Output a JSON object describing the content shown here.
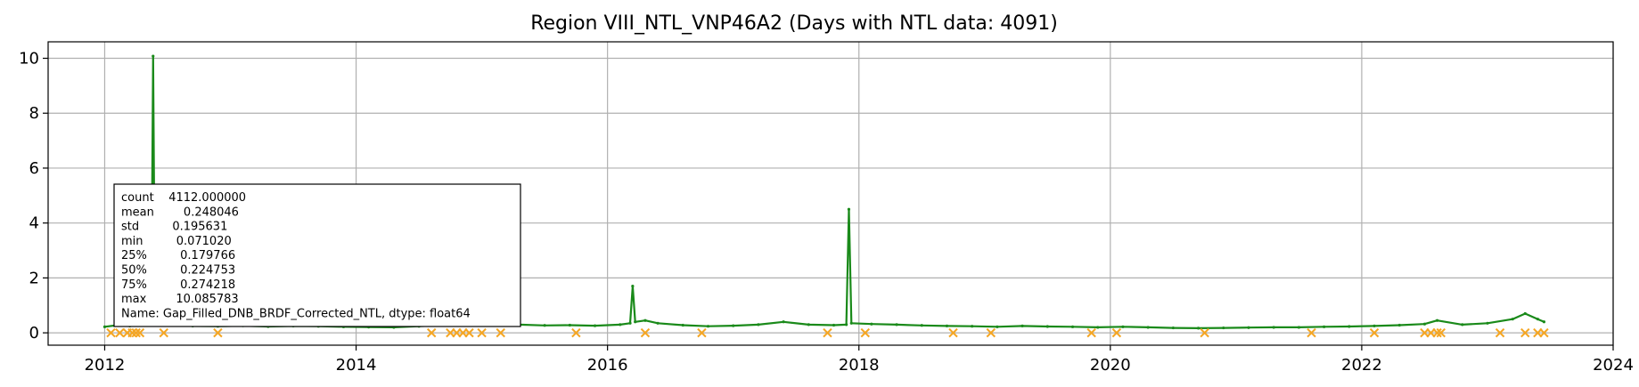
{
  "chart_data": {
    "type": "line",
    "title": "Region VIII_NTL_VNP46A2 (Days with NTL data: 4091)",
    "xlabel": "",
    "ylabel": "",
    "xlim": [
      2011.55,
      2024.0
    ],
    "ylim": [
      -0.45,
      10.6
    ],
    "x_ticks": [
      2012,
      2014,
      2016,
      2018,
      2020,
      2022,
      2024
    ],
    "x_tick_labels": [
      "2012",
      "2014",
      "2016",
      "2018",
      "2020",
      "2022",
      "2024"
    ],
    "y_ticks": [
      0,
      2,
      4,
      6,
      8,
      10
    ],
    "y_tick_labels": [
      "0",
      "2",
      "4",
      "6",
      "8",
      "10"
    ],
    "grid": true,
    "colors": {
      "line": "#1a8a1a",
      "spike": "#55bb55",
      "marker": "#f5a623",
      "grid": "#b0b0b0"
    },
    "series": [
      {
        "style": "line",
        "x": [
          2012.0,
          2012.1,
          2012.2,
          2012.3,
          2012.37,
          2012.385,
          2012.4,
          2012.5,
          2012.7,
          2012.9,
          2013.1,
          2013.3,
          2013.5,
          2013.7,
          2013.9,
          2014.1,
          2014.3,
          2014.5,
          2014.7,
          2014.9,
          2015.1,
          2015.3,
          2015.5,
          2015.7,
          2015.9,
          2016.1,
          2016.18,
          2016.2,
          2016.22,
          2016.3,
          2016.4,
          2016.6,
          2016.8,
          2017.0,
          2017.2,
          2017.4,
          2017.6,
          2017.8,
          2017.9,
          2017.92,
          2017.94,
          2018.1,
          2018.3,
          2018.5,
          2018.7,
          2018.9,
          2019.1,
          2019.3,
          2019.5,
          2019.7,
          2019.9,
          2020.1,
          2020.3,
          2020.5,
          2020.7,
          2020.9,
          2021.1,
          2021.3,
          2021.5,
          2021.7,
          2021.9,
          2022.1,
          2022.3,
          2022.5,
          2022.6,
          2022.8,
          2023.0,
          2023.2,
          2023.3,
          2023.4,
          2023.45
        ],
        "y": [
          0.22,
          0.28,
          0.25,
          0.3,
          0.35,
          10.08,
          0.3,
          0.27,
          0.25,
          0.24,
          0.26,
          0.23,
          0.25,
          0.24,
          0.22,
          0.21,
          0.2,
          0.24,
          0.28,
          0.3,
          0.32,
          0.3,
          0.27,
          0.28,
          0.26,
          0.3,
          0.35,
          1.7,
          0.4,
          0.45,
          0.35,
          0.28,
          0.24,
          0.26,
          0.3,
          0.4,
          0.3,
          0.28,
          0.3,
          4.5,
          0.35,
          0.32,
          0.3,
          0.27,
          0.25,
          0.24,
          0.22,
          0.25,
          0.23,
          0.22,
          0.2,
          0.22,
          0.2,
          0.18,
          0.17,
          0.18,
          0.19,
          0.2,
          0.2,
          0.22,
          0.23,
          0.25,
          0.28,
          0.32,
          0.45,
          0.3,
          0.35,
          0.5,
          0.7,
          0.5,
          0.4
        ]
      },
      {
        "style": "marker-x",
        "x": [
          2012.05,
          2012.12,
          2012.18,
          2012.22,
          2012.25,
          2012.28,
          2012.47,
          2012.9,
          2014.6,
          2014.75,
          2014.8,
          2014.85,
          2014.9,
          2015.0,
          2015.15,
          2015.75,
          2016.3,
          2016.75,
          2017.75,
          2018.05,
          2018.75,
          2019.05,
          2019.85,
          2020.05,
          2020.75,
          2021.6,
          2022.1,
          2022.5,
          2022.55,
          2022.6,
          2022.63,
          2023.1,
          2023.3,
          2023.4,
          2023.45
        ],
        "y": [
          0,
          0,
          0,
          0,
          0,
          0,
          0,
          0,
          0,
          0,
          0,
          0,
          0,
          0,
          0,
          0,
          0,
          0,
          0,
          0,
          0,
          0,
          0,
          0,
          0,
          0,
          0,
          0,
          0,
          0,
          0,
          0,
          0,
          0,
          0
        ]
      }
    ],
    "annotation": {
      "lines": [
        "count    4112.000000",
        "mean        0.248046",
        "std         0.195631",
        "min         0.071020",
        "25%         0.179766",
        "50%         0.224753",
        "75%         0.274218",
        "max        10.085783",
        "Name: Gap_Filled_DNB_BRDF_Corrected_NTL, dtype: float64"
      ]
    }
  }
}
